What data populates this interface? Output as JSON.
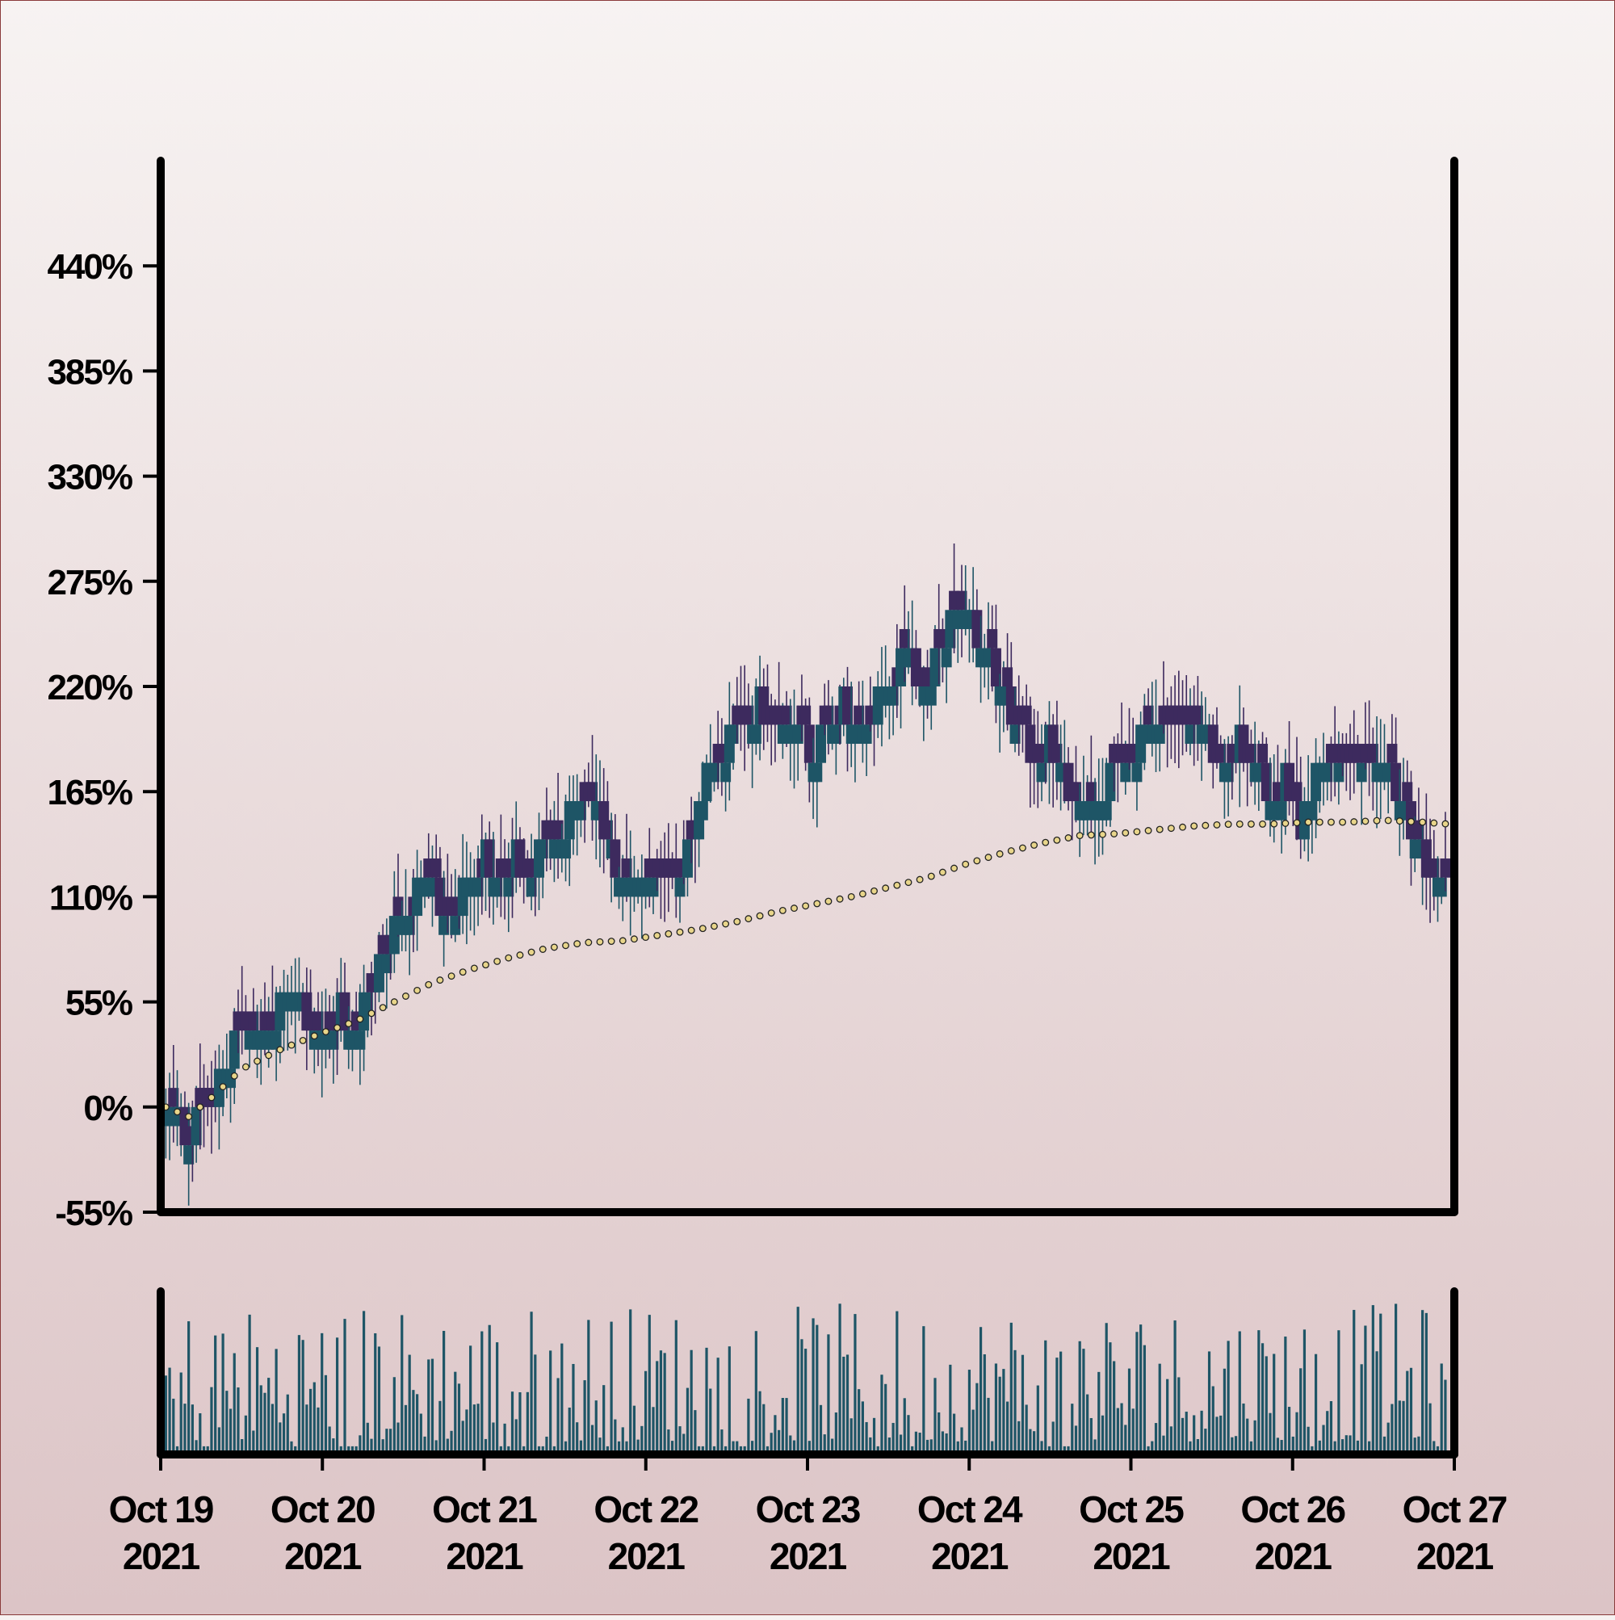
{
  "chart_data": {
    "type": "candlestick",
    "title": "",
    "xlabel": "",
    "ylabel": "",
    "x_ticks": [
      {
        "date": "2021-10-19",
        "line1": "Oct 19",
        "line2": "2021"
      },
      {
        "date": "2021-10-20",
        "line1": "Oct 20",
        "line2": "2021"
      },
      {
        "date": "2021-10-21",
        "line1": "Oct 21",
        "line2": "2021"
      },
      {
        "date": "2021-10-22",
        "line1": "Oct 22",
        "line2": "2021"
      },
      {
        "date": "2021-10-23",
        "line1": "Oct 23",
        "line2": "2021"
      },
      {
        "date": "2021-10-24",
        "line1": "Oct 24",
        "line2": "2021"
      },
      {
        "date": "2021-10-25",
        "line1": "Oct 25",
        "line2": "2021"
      },
      {
        "date": "2021-10-26",
        "line1": "Oct 26",
        "line2": "2021"
      },
      {
        "date": "2021-10-27",
        "line1": "Oct 27",
        "line2": "2021"
      }
    ],
    "xlim": [
      "2021-10-19 00:00",
      "2021-10-27 00:00"
    ],
    "y_ticks": [
      {
        "value": -55,
        "label": "-55%"
      },
      {
        "value": 0,
        "label": "0%"
      },
      {
        "value": 55,
        "label": "55%"
      },
      {
        "value": 110,
        "label": "110%"
      },
      {
        "value": 165,
        "label": "165%"
      },
      {
        "value": 220,
        "label": "220%"
      },
      {
        "value": 275,
        "label": "275%"
      },
      {
        "value": 330,
        "label": "330%"
      },
      {
        "value": 385,
        "label": "385%"
      },
      {
        "value": 440,
        "label": "440%"
      }
    ],
    "ylim": [
      -55,
      495
    ],
    "grid": false,
    "legend": "none",
    "colors": {
      "up": "#1e5566",
      "down": "#3d2a5e",
      "moving_average_fill": "#e8d58a",
      "moving_average_edge": "#222222",
      "volume": "#1e5566"
    },
    "price_path_percent": [
      [
        0,
        0
      ],
      [
        6,
        -15
      ],
      [
        12,
        0
      ],
      [
        18,
        30
      ],
      [
        24,
        30
      ],
      [
        30,
        50
      ],
      [
        34,
        60
      ],
      [
        38,
        45
      ],
      [
        42,
        35
      ],
      [
        46,
        50
      ],
      [
        50,
        40
      ],
      [
        56,
        70
      ],
      [
        60,
        90
      ],
      [
        66,
        110
      ],
      [
        70,
        115
      ],
      [
        74,
        100
      ],
      [
        78,
        110
      ],
      [
        84,
        130
      ],
      [
        88,
        120
      ],
      [
        92,
        130
      ],
      [
        96,
        125
      ],
      [
        102,
        140
      ],
      [
        106,
        150
      ],
      [
        110,
        165
      ],
      [
        114,
        150
      ],
      [
        118,
        125
      ],
      [
        122,
        115
      ],
      [
        126,
        110
      ],
      [
        130,
        120
      ],
      [
        134,
        112
      ],
      [
        138,
        140
      ],
      [
        142,
        170
      ],
      [
        146,
        185
      ],
      [
        150,
        195
      ],
      [
        156,
        210
      ],
      [
        160,
        205
      ],
      [
        166,
        195
      ],
      [
        170,
        185
      ],
      [
        174,
        200
      ],
      [
        178,
        210
      ],
      [
        184,
        205
      ],
      [
        190,
        215
      ],
      [
        194,
        240
      ],
      [
        198,
        225
      ],
      [
        202,
        230
      ],
      [
        206,
        250
      ],
      [
        210,
        258
      ],
      [
        216,
        235
      ],
      [
        220,
        215
      ],
      [
        224,
        195
      ],
      [
        228,
        185
      ],
      [
        232,
        190
      ],
      [
        236,
        170
      ],
      [
        240,
        160
      ],
      [
        244,
        155
      ],
      [
        248,
        170
      ],
      [
        252,
        180
      ],
      [
        256,
        190
      ],
      [
        260,
        200
      ],
      [
        264,
        205
      ],
      [
        270,
        205
      ],
      [
        274,
        190
      ],
      [
        278,
        170
      ],
      [
        282,
        190
      ],
      [
        286,
        180
      ],
      [
        290,
        165
      ],
      [
        294,
        170
      ],
      [
        298,
        145
      ],
      [
        302,
        170
      ],
      [
        306,
        175
      ],
      [
        310,
        170
      ],
      [
        314,
        178
      ],
      [
        318,
        180
      ],
      [
        322,
        170
      ],
      [
        326,
        150
      ],
      [
        330,
        130
      ],
      [
        334,
        115
      ],
      [
        337,
        112
      ]
    ],
    "moving_average_percent": [
      [
        0,
        0
      ],
      [
        6,
        -5
      ],
      [
        12,
        5
      ],
      [
        20,
        20
      ],
      [
        30,
        30
      ],
      [
        40,
        38
      ],
      [
        50,
        45
      ],
      [
        60,
        55
      ],
      [
        70,
        65
      ],
      [
        80,
        72
      ],
      [
        90,
        78
      ],
      [
        100,
        83
      ],
      [
        110,
        86
      ],
      [
        120,
        87
      ],
      [
        130,
        90
      ],
      [
        140,
        93
      ],
      [
        150,
        97
      ],
      [
        160,
        102
      ],
      [
        170,
        106
      ],
      [
        180,
        110
      ],
      [
        190,
        115
      ],
      [
        200,
        120
      ],
      [
        210,
        127
      ],
      [
        220,
        133
      ],
      [
        230,
        138
      ],
      [
        240,
        142
      ],
      [
        250,
        143
      ],
      [
        260,
        145
      ],
      [
        270,
        147
      ],
      [
        280,
        148
      ],
      [
        290,
        148
      ],
      [
        300,
        149
      ],
      [
        310,
        149
      ],
      [
        320,
        150
      ],
      [
        330,
        149
      ],
      [
        337,
        148
      ]
    ],
    "volume_relative_max": 1.0
  }
}
